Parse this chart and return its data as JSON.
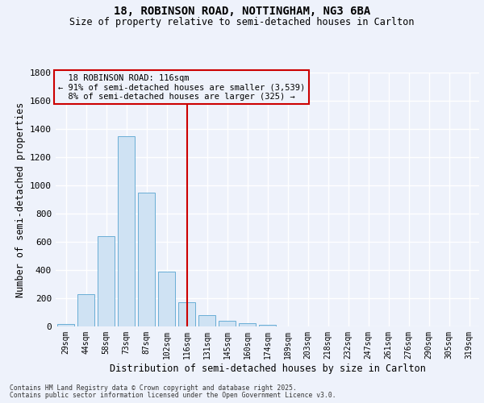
{
  "title_line1": "18, ROBINSON ROAD, NOTTINGHAM, NG3 6BA",
  "title_line2": "Size of property relative to semi-detached houses in Carlton",
  "xlabel": "Distribution of semi-detached houses by size in Carlton",
  "ylabel": "Number of semi-detached properties",
  "bin_labels": [
    "29sqm",
    "44sqm",
    "58sqm",
    "73sqm",
    "87sqm",
    "102sqm",
    "116sqm",
    "131sqm",
    "145sqm",
    "160sqm",
    "174sqm",
    "189sqm",
    "203sqm",
    "218sqm",
    "232sqm",
    "247sqm",
    "261sqm",
    "276sqm",
    "290sqm",
    "305sqm",
    "319sqm"
  ],
  "bar_values": [
    20,
    230,
    640,
    1350,
    950,
    390,
    170,
    80,
    40,
    25,
    10,
    0,
    0,
    0,
    0,
    0,
    0,
    0,
    0,
    0,
    0
  ],
  "property_label": "18 ROBINSON ROAD: 116sqm",
  "pct_smaller": 91,
  "n_smaller": 3539,
  "pct_larger": 8,
  "n_larger": 325,
  "vline_bin_index": 6,
  "bar_color": "#cfe2f3",
  "bar_edge_color": "#6aaed6",
  "vline_color": "#cc0000",
  "box_edge_color": "#cc0000",
  "background_color": "#eef2fb",
  "grid_color": "#d8dff0",
  "ylim_max": 1800,
  "yticks": [
    0,
    200,
    400,
    600,
    800,
    1000,
    1200,
    1400,
    1600,
    1800
  ],
  "footnote_line1": "Contains HM Land Registry data © Crown copyright and database right 2025.",
  "footnote_line2": "Contains public sector information licensed under the Open Government Licence v3.0."
}
